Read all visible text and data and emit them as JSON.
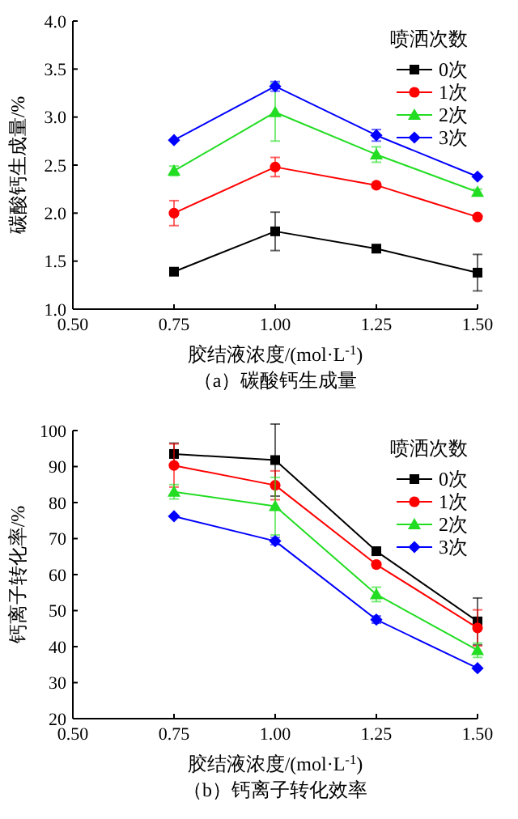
{
  "chart_data": [
    {
      "type": "line",
      "ylabel": "碳酸钙生成量/%",
      "xlabel": "胶结液浓度/(mol·L$^{-1}$)",
      "legend_title": "喷洒次数",
      "legend": "top right",
      "annotations": [
        "（a）碳酸钙生成量"
      ],
      "x": [
        0.75,
        1.0,
        1.25,
        1.5
      ],
      "xlim": [
        0.5,
        1.5
      ],
      "xticks": [
        {
          "value": 0.5,
          "label": "0.50"
        },
        {
          "value": 0.75,
          "label": "0.75"
        },
        {
          "value": 1.0,
          "label": "1.00"
        },
        {
          "value": 1.25,
          "label": "1.25"
        },
        {
          "value": 1.5,
          "label": "1.50"
        }
      ],
      "ylim": [
        1.0,
        4.0
      ],
      "yticks": [
        {
          "value": 1.0,
          "label": "1.0"
        },
        {
          "value": 1.5,
          "label": "1.5"
        },
        {
          "value": 2.0,
          "label": "2.0"
        },
        {
          "value": 2.5,
          "label": "2.5"
        },
        {
          "value": 3.0,
          "label": "3.0"
        },
        {
          "value": 3.5,
          "label": "3.5"
        },
        {
          "value": 4.0,
          "label": "4.0"
        }
      ],
      "grid": false,
      "series": [
        {
          "name": "0次",
          "color": "#000000",
          "marker": "square",
          "values": [
            1.39,
            1.81,
            1.63,
            1.38
          ],
          "errors": [
            null,
            0.2,
            null,
            0.19
          ]
        },
        {
          "name": "1次",
          "color": "#ff0000",
          "marker": "circle",
          "values": [
            2.0,
            2.48,
            2.29,
            1.96
          ],
          "errors": [
            0.13,
            0.1,
            null,
            null
          ]
        },
        {
          "name": "2次",
          "color": "#22dd22",
          "marker": "triangle",
          "values": [
            2.44,
            3.05,
            2.61,
            2.22
          ],
          "errors": [
            0.05,
            0.3,
            0.08,
            0.03
          ]
        },
        {
          "name": "3次",
          "color": "#0000ff",
          "marker": "diamond",
          "values": [
            2.76,
            3.32,
            2.81,
            2.38
          ],
          "errors": [
            null,
            0.05,
            0.06,
            null
          ]
        }
      ]
    },
    {
      "type": "line",
      "ylabel": "钙离子转化率/%",
      "xlabel": "胶结液浓度/(mol·L$^{-1}$)",
      "legend_title": "喷洒次数",
      "legend": "top right",
      "annotations": [
        "（b）钙离子转化效率"
      ],
      "x": [
        0.75,
        1.0,
        1.25,
        1.5
      ],
      "xlim": [
        0.5,
        1.5
      ],
      "xticks": [
        {
          "value": 0.5,
          "label": "0.50"
        },
        {
          "value": 0.75,
          "label": "0.75"
        },
        {
          "value": 1.0,
          "label": "1.00"
        },
        {
          "value": 1.25,
          "label": "1.25"
        },
        {
          "value": 1.5,
          "label": "1.50"
        }
      ],
      "ylim": [
        20,
        100
      ],
      "yticks": [
        20,
        30,
        40,
        50,
        60,
        70,
        80,
        90,
        100
      ],
      "grid": false,
      "series": [
        {
          "name": "0次",
          "color": "#000000",
          "marker": "square",
          "values": [
            93.5,
            91.8,
            66.5,
            47
          ],
          "errors": [
            3,
            10,
            null,
            6.5
          ]
        },
        {
          "name": "1次",
          "color": "#ff0000",
          "marker": "circle",
          "values": [
            90.3,
            84.8,
            62.8,
            45.2
          ],
          "errors": [
            6,
            4,
            null,
            5
          ]
        },
        {
          "name": "2次",
          "color": "#22dd22",
          "marker": "triangle",
          "values": [
            83,
            79,
            54.5,
            39
          ],
          "errors": [
            2,
            8,
            2,
            2
          ]
        },
        {
          "name": "3次",
          "color": "#0000ff",
          "marker": "diamond",
          "values": [
            76.2,
            69.3,
            47.5,
            34
          ],
          "errors": [
            null,
            1,
            1,
            null
          ]
        }
      ]
    }
  ]
}
